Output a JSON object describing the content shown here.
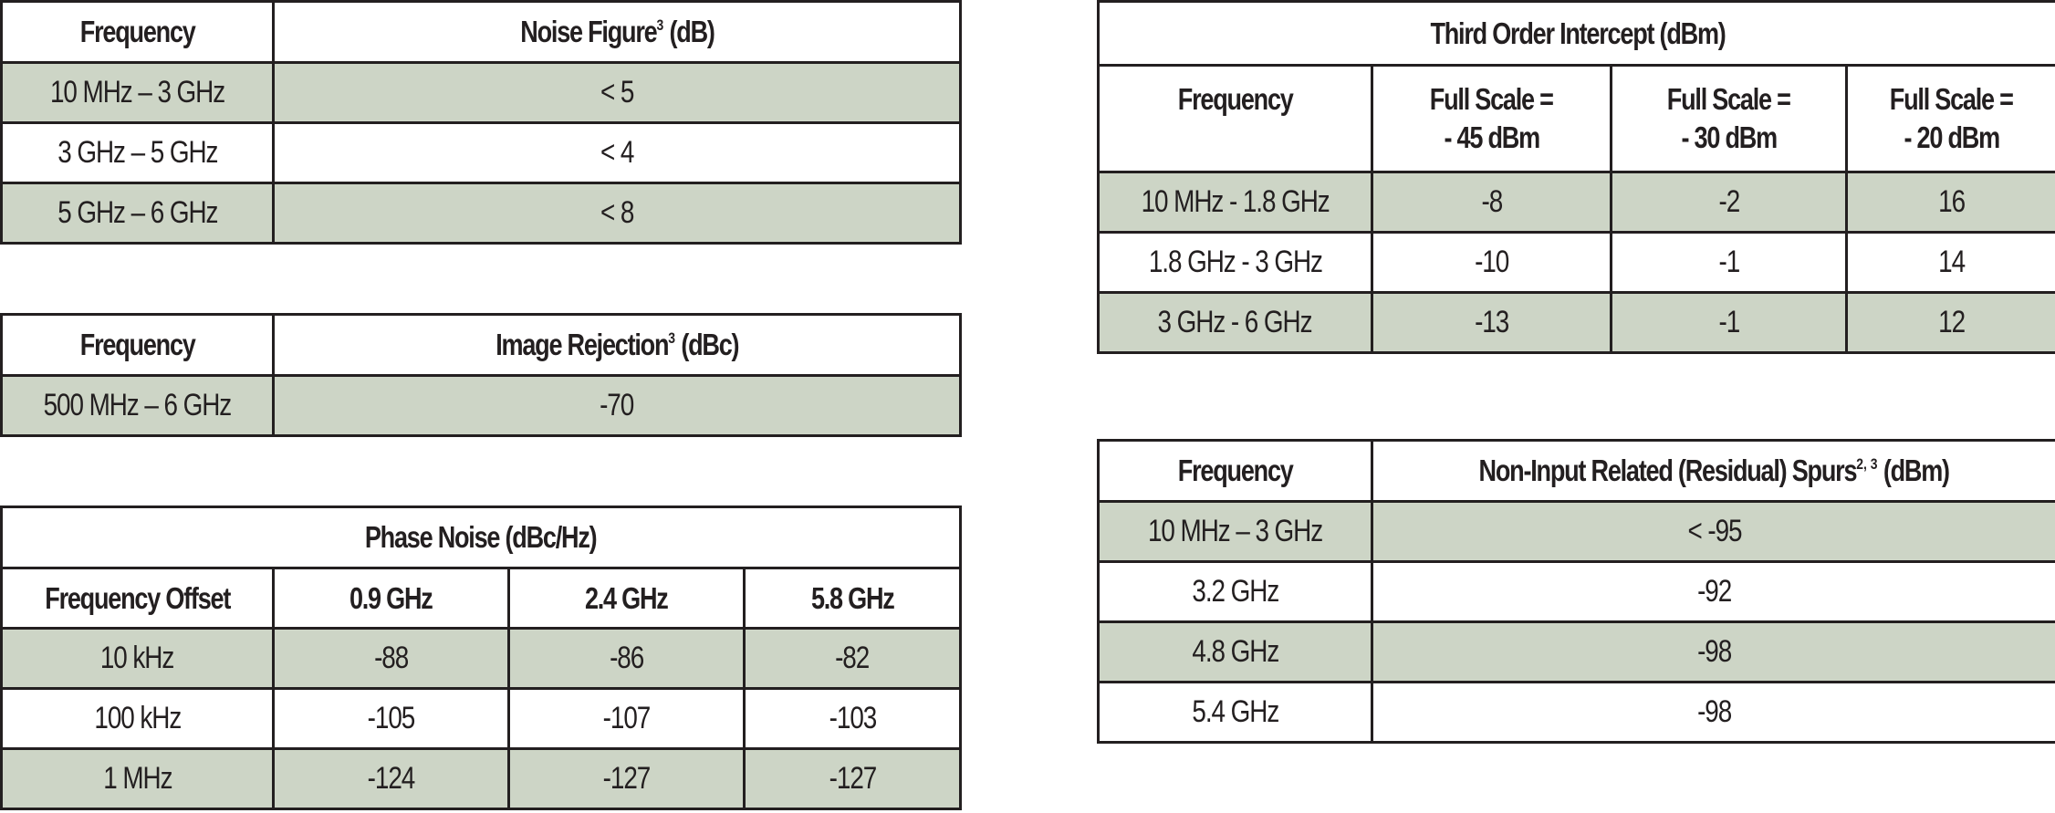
{
  "noise_figure": {
    "header_frequency": "Frequency",
    "header_value": "Noise Figure",
    "header_footnote": "3",
    "header_unit": "(dB)",
    "rows": [
      {
        "frequency": "10 MHz – 3 GHz",
        "value": "< 5"
      },
      {
        "frequency": "3 GHz – 5 GHz",
        "value": "< 4"
      },
      {
        "frequency": "5 GHz – 6 GHz",
        "value": "< 8"
      }
    ]
  },
  "image_rejection": {
    "header_frequency": "Frequency",
    "header_value": "Image Rejection",
    "header_footnote": "3",
    "header_unit": "(dBc)",
    "rows": [
      {
        "frequency": "500 MHz – 6 GHz",
        "value": "-70"
      }
    ]
  },
  "phase_noise": {
    "title": "Phase Noise (dBc/Hz)",
    "columns": [
      "Frequency Offset",
      "0.9 GHz",
      "2.4 GHz",
      "5.8 GHz"
    ],
    "rows": [
      [
        "10 kHz",
        "-88",
        "-86",
        "-82"
      ],
      [
        "100 kHz",
        "-105",
        "-107",
        "-103"
      ],
      [
        "1 MHz",
        "-124",
        "-127",
        "-127"
      ]
    ]
  },
  "third_order_intercept": {
    "title": "Third Order Intercept (dBm)",
    "columns": [
      {
        "line1": "Frequency",
        "line2": ""
      },
      {
        "line1": "Full Scale =",
        "line2": "- 45 dBm"
      },
      {
        "line1": "Full Scale =",
        "line2": "- 30 dBm"
      },
      {
        "line1": "Full Scale =",
        "line2": "- 20 dBm"
      }
    ],
    "rows": [
      [
        "10 MHz - 1.8 GHz",
        "-8",
        "-2",
        "16"
      ],
      [
        "1.8 GHz - 3 GHz",
        "-10",
        "-1",
        "14"
      ],
      [
        "3 GHz - 6 GHz",
        "-13",
        "-1",
        "12"
      ]
    ]
  },
  "residual_spurs": {
    "header_frequency": "Frequency",
    "header_value": "Non-Input Related (Residual) Spurs",
    "header_footnote": "2, 3",
    "header_unit": "(dBm)",
    "rows": [
      {
        "frequency": "10 MHz – 3 GHz",
        "value": "< -95"
      },
      {
        "frequency": "3.2 GHz",
        "value": "-92"
      },
      {
        "frequency": "4.8 GHz",
        "value": "-98"
      },
      {
        "frequency": "5.4 GHz",
        "value": "-98"
      }
    ]
  },
  "colors": {
    "shaded_row": "#cdd5c6",
    "border": "#231f20",
    "text": "#231f20"
  }
}
